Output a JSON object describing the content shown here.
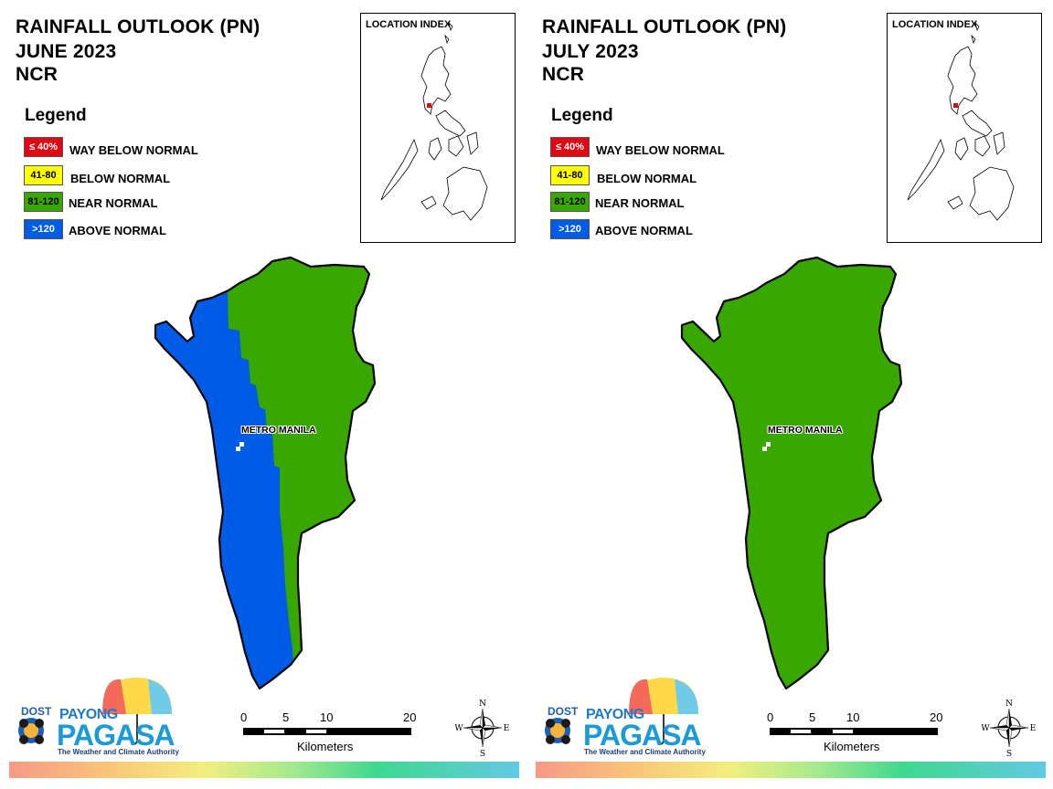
{
  "panels": [
    {
      "title": "RAINFALL OUTLOOK (PN)",
      "month": "JUNE 2023",
      "region": "NCR",
      "rainfall_category": "split: ABOVE NORMAL (western strip), NEAR NORMAL (eastern area)"
    },
    {
      "title": "RAINFALL OUTLOOK (PN)",
      "month": "JULY 2023",
      "region": "NCR",
      "rainfall_category": "NEAR NORMAL"
    }
  ],
  "legend": {
    "title": "Legend",
    "items": [
      {
        "range": "≤ 40%",
        "label": "WAY BELOW NORMAL",
        "color": "#e30613",
        "text_color": "#ffffff"
      },
      {
        "range": "41-80",
        "label": "BELOW NORMAL",
        "color": "#ffff00",
        "text_color": "#000000"
      },
      {
        "range": "81-120",
        "label": "NEAR NORMAL",
        "color": "#38a800",
        "text_color": "#000000"
      },
      {
        "range": ">120",
        "label": "ABOVE NORMAL",
        "color": "#005ce6",
        "text_color": "#ffffff"
      }
    ]
  },
  "inset": {
    "title": "LOCATION INDEX"
  },
  "place_label": "METRO MANILA",
  "scale_bar": {
    "ticks": [
      "0",
      "5",
      "10",
      "20"
    ],
    "unit": "Kilometers"
  },
  "compass": {
    "n": "N",
    "s": "S",
    "e": "E",
    "w": "W"
  },
  "logo": {
    "dost": "DOST",
    "payong": "PAYONG",
    "pagasa": "PAGASA",
    "tagline": "The Weather and Climate Authority"
  },
  "colors": {
    "near_normal": "#38a800",
    "above_normal": "#005ce6",
    "outline": "#000000"
  }
}
